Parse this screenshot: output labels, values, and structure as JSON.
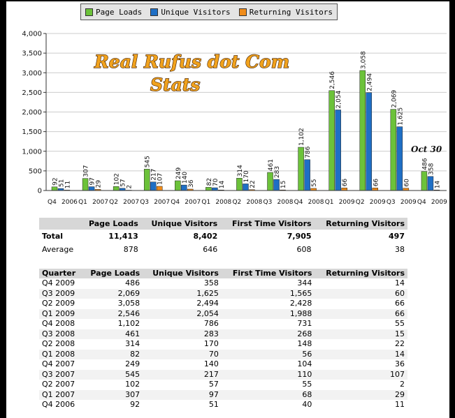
{
  "chart_data": {
    "type": "bar",
    "title": "Real Rufus dot Com Stats",
    "title_lines": [
      "Real Rufus dot Com",
      "Stats"
    ],
    "annotation": "Oct 30",
    "categories": [
      "Q4 2006",
      "Q1 2007",
      "Q2 2007",
      "Q3 2007",
      "Q4 2007",
      "Q1 2008",
      "Q2 2008",
      "Q3 2008",
      "Q4 2008",
      "Q1 2009",
      "Q2 2009",
      "Q3 2009",
      "Q4 2009"
    ],
    "category_parts": [
      [
        "Q4",
        "2006"
      ],
      [
        "Q1",
        "2007"
      ],
      [
        "Q2",
        "2007"
      ],
      [
        "Q3",
        "2007"
      ],
      [
        "Q4",
        "2007"
      ],
      [
        "Q1",
        "2008"
      ],
      [
        "Q2",
        "2008"
      ],
      [
        "Q3",
        "2008"
      ],
      [
        "Q4",
        "2008"
      ],
      [
        "Q1",
        "2009"
      ],
      [
        "Q2",
        "2009"
      ],
      [
        "Q3",
        "2009"
      ],
      [
        "Q4",
        "2009"
      ]
    ],
    "series": [
      {
        "name": "Page Loads",
        "color": "#6cc23a",
        "values": [
          92,
          307,
          102,
          545,
          249,
          82,
          314,
          461,
          1102,
          2546,
          3058,
          2069,
          486
        ],
        "labels": [
          "92",
          "307",
          "102",
          "545",
          "249",
          "82",
          "314",
          "461",
          "1,102",
          "2,546",
          "3,058",
          "2,069",
          "486"
        ]
      },
      {
        "name": "Unique Visitors",
        "color": "#1f6fc5",
        "values": [
          51,
          97,
          57,
          217,
          140,
          70,
          170,
          283,
          786,
          2054,
          2494,
          1625,
          358
        ],
        "labels": [
          "51",
          "97",
          "57",
          "217",
          "140",
          "70",
          "170",
          "283",
          "786",
          "2,054",
          "2,494",
          "1,625",
          "358"
        ]
      },
      {
        "name": "Returning Visitors",
        "color": "#f08c1a",
        "values": [
          11,
          29,
          2,
          107,
          36,
          14,
          22,
          15,
          55,
          66,
          66,
          60,
          14
        ],
        "labels": [
          "11",
          "29",
          "2",
          "107",
          "36",
          "14",
          "22",
          "15",
          "55",
          "66",
          "66",
          "60",
          "14"
        ]
      }
    ],
    "ylim": [
      0,
      4000
    ],
    "yticks": [
      0,
      500,
      1000,
      1500,
      2000,
      2500,
      3000,
      3500,
      4000
    ],
    "ytick_labels": [
      "0",
      "500",
      "1,000",
      "1,500",
      "2,000",
      "2,500",
      "3,000",
      "3,500",
      "4,000"
    ],
    "grid": true,
    "legend_position": "top-center"
  },
  "summary": {
    "headers": [
      "",
      "Page Loads",
      "Unique Visitors",
      "First Time Visitors",
      "Returning Visitors"
    ],
    "rows": [
      [
        "Total",
        "11,413",
        "8,402",
        "7,905",
        "497"
      ],
      [
        "Average",
        "878",
        "646",
        "608",
        "38"
      ]
    ]
  },
  "quarterly": {
    "headers": [
      "Quarter",
      "Page Loads",
      "Unique Visitors",
      "First Time Visitors",
      "Returning Visitors"
    ],
    "rows": [
      [
        "Q4 2009",
        "486",
        "358",
        "344",
        "14"
      ],
      [
        "Q3 2009",
        "2,069",
        "1,625",
        "1,565",
        "60"
      ],
      [
        "Q2 2009",
        "3,058",
        "2,494",
        "2,428",
        "66"
      ],
      [
        "Q1 2009",
        "2,546",
        "2,054",
        "1,988",
        "66"
      ],
      [
        "Q4 2008",
        "1,102",
        "786",
        "731",
        "55"
      ],
      [
        "Q3 2008",
        "461",
        "283",
        "268",
        "15"
      ],
      [
        "Q2 2008",
        "314",
        "170",
        "148",
        "22"
      ],
      [
        "Q1 2008",
        "82",
        "70",
        "56",
        "14"
      ],
      [
        "Q4 2007",
        "249",
        "140",
        "104",
        "36"
      ],
      [
        "Q3 2007",
        "545",
        "217",
        "110",
        "107"
      ],
      [
        "Q2 2007",
        "102",
        "57",
        "55",
        "2"
      ],
      [
        "Q1 2007",
        "307",
        "97",
        "68",
        "29"
      ],
      [
        "Q4 2006",
        "92",
        "51",
        "40",
        "11"
      ]
    ]
  }
}
